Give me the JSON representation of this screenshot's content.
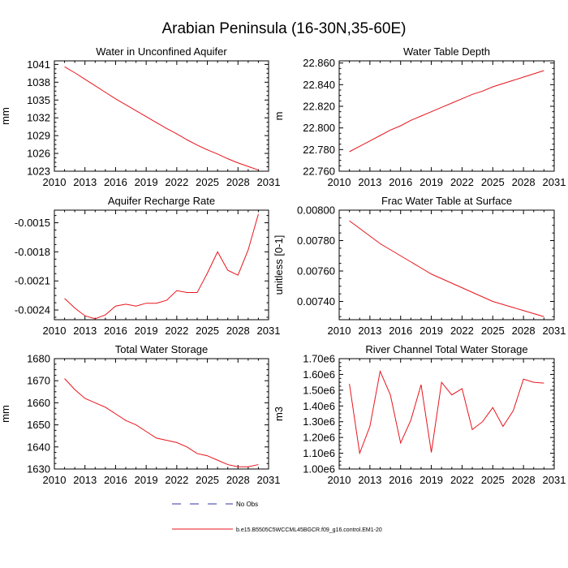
{
  "figure": {
    "title": "Arabian Peninsula (16-30N,35-60E)"
  },
  "colors": {
    "model": "#e8141c",
    "obs": "#3333aa",
    "axis": "#000000"
  },
  "legend": {
    "obs_label": "No Obs",
    "model_label": "b.e15.B5505C5WCCML45BGCR.f09_g16.control.EM1-20"
  },
  "chart_data": [
    {
      "type": "line",
      "title": "Water in Unconfined Aquifer",
      "ylabel": "mm",
      "xlim": [
        2010,
        2031
      ],
      "ylim": [
        1023,
        1041.6
      ],
      "xticks": [
        2010,
        2013,
        2016,
        2019,
        2022,
        2025,
        2028,
        2031
      ],
      "xtick_labels": [
        "2010",
        "2013",
        "2016",
        "2019",
        "2022",
        "2025",
        "2028",
        "2031"
      ],
      "yticks": [
        1023,
        1026,
        1029,
        1032,
        1035,
        1038,
        1041
      ],
      "ytick_labels": [
        "1023",
        "1026",
        "1029",
        "1032",
        "1035",
        "1038",
        "1041"
      ],
      "series": [
        {
          "x": [
            2011,
            2012,
            2013,
            2014,
            2015,
            2016,
            2017,
            2018,
            2019,
            2020,
            2021,
            2022,
            2023,
            2024,
            2025,
            2026,
            2027,
            2028,
            2029,
            2030
          ],
          "y": [
            1040.6,
            1039.6,
            1038.5,
            1037.4,
            1036.3,
            1035.2,
            1034.2,
            1033.2,
            1032.2,
            1031.2,
            1030.2,
            1029.3,
            1028.3,
            1027.4,
            1026.6,
            1025.9,
            1025.1,
            1024.4,
            1023.8,
            1023.2
          ]
        }
      ]
    },
    {
      "type": "line",
      "title": "Water Table Depth",
      "ylabel": "m",
      "xlim": [
        2010,
        2031
      ],
      "ylim": [
        22.76,
        22.862
      ],
      "xticks": [
        2010,
        2013,
        2016,
        2019,
        2022,
        2025,
        2028,
        2031
      ],
      "xtick_labels": [
        "2010",
        "2013",
        "2016",
        "2019",
        "2022",
        "2025",
        "2028",
        "2031"
      ],
      "yticks": [
        22.76,
        22.78,
        22.8,
        22.82,
        22.84,
        22.86
      ],
      "ytick_labels": [
        "22.760",
        "22.780",
        "22.800",
        "22.820",
        "22.840",
        "22.860"
      ],
      "series": [
        {
          "x": [
            2011,
            2012,
            2013,
            2014,
            2015,
            2016,
            2017,
            2018,
            2019,
            2020,
            2021,
            2022,
            2023,
            2024,
            2025,
            2026,
            2027,
            2028,
            2029,
            2030
          ],
          "y": [
            22.778,
            22.783,
            22.788,
            22.793,
            22.798,
            22.802,
            22.807,
            22.811,
            22.815,
            22.819,
            22.823,
            22.827,
            22.831,
            22.834,
            22.838,
            22.841,
            22.844,
            22.847,
            22.85,
            22.853
          ]
        }
      ]
    },
    {
      "type": "line",
      "title": "Aquifer Recharge Rate",
      "ylabel": "",
      "xlim": [
        2010,
        2031
      ],
      "ylim": [
        -0.0025,
        -0.00137
      ],
      "xticks": [
        2010,
        2013,
        2016,
        2019,
        2022,
        2025,
        2028,
        2031
      ],
      "xtick_labels": [
        "2010",
        "2013",
        "2016",
        "2019",
        "2022",
        "2025",
        "2028",
        "2031"
      ],
      "yticks": [
        -0.0024,
        -0.0021,
        -0.0018,
        -0.0015
      ],
      "ytick_labels": [
        "-0.0024",
        "-0.0021",
        "-0.0018",
        "-0.0015"
      ],
      "series": [
        {
          "x": [
            2011,
            2012,
            2013,
            2014,
            2015,
            2016,
            2017,
            2018,
            2019,
            2020,
            2021,
            2022,
            2023,
            2024,
            2025,
            2026,
            2027,
            2028,
            2029,
            2030
          ],
          "y": [
            -0.00228,
            -0.00238,
            -0.00246,
            -0.00249,
            -0.00245,
            -0.00236,
            -0.00234,
            -0.00236,
            -0.00233,
            -0.00233,
            -0.0023,
            -0.0022,
            -0.00222,
            -0.00222,
            -0.00202,
            -0.0018,
            -0.00199,
            -0.00204,
            -0.00178,
            -0.00141
          ]
        }
      ]
    },
    {
      "type": "line",
      "title": "Frac Water Table at Surface",
      "ylabel": "unitless [0-1]",
      "xlim": [
        2010,
        2031
      ],
      "ylim": [
        0.00728,
        0.008
      ],
      "xticks": [
        2010,
        2013,
        2016,
        2019,
        2022,
        2025,
        2028,
        2031
      ],
      "xtick_labels": [
        "2010",
        "2013",
        "2016",
        "2019",
        "2022",
        "2025",
        "2028",
        "2031"
      ],
      "yticks": [
        0.0074,
        0.0076,
        0.0078,
        0.008
      ],
      "ytick_labels": [
        "0.00740",
        "0.00760",
        "0.00780",
        "0.00800"
      ],
      "series": [
        {
          "x": [
            2011,
            2012,
            2013,
            2014,
            2015,
            2016,
            2017,
            2018,
            2019,
            2020,
            2021,
            2022,
            2023,
            2024,
            2025,
            2026,
            2027,
            2028,
            2029,
            2030
          ],
          "y": [
            0.00793,
            0.00788,
            0.00783,
            0.00778,
            0.00774,
            0.0077,
            0.00766,
            0.00762,
            0.00758,
            0.00755,
            0.00752,
            0.00749,
            0.00746,
            0.00743,
            0.0074,
            0.00738,
            0.00736,
            0.00734,
            0.00732,
            0.0073
          ]
        }
      ]
    },
    {
      "type": "line",
      "title": "Total Water Storage",
      "ylabel": "mm",
      "xlim": [
        2010,
        2031
      ],
      "ylim": [
        1630,
        1680
      ],
      "xticks": [
        2010,
        2013,
        2016,
        2019,
        2022,
        2025,
        2028,
        2031
      ],
      "xtick_labels": [
        "2010",
        "2013",
        "2016",
        "2019",
        "2022",
        "2025",
        "2028",
        "2031"
      ],
      "yticks": [
        1630,
        1640,
        1650,
        1660,
        1670,
        1680
      ],
      "ytick_labels": [
        "1630",
        "1640",
        "1650",
        "1660",
        "1670",
        "1680"
      ],
      "series": [
        {
          "x": [
            2011,
            2012,
            2013,
            2014,
            2015,
            2016,
            2017,
            2018,
            2019,
            2020,
            2021,
            2022,
            2023,
            2024,
            2025,
            2026,
            2027,
            2028,
            2029,
            2030
          ],
          "y": [
            1671,
            1666,
            1662,
            1660,
            1658,
            1655,
            1652,
            1650,
            1647,
            1644,
            1643,
            1642,
            1640,
            1637,
            1636,
            1634,
            1632,
            1631,
            1631,
            1632
          ]
        }
      ]
    },
    {
      "type": "line",
      "title": "River Channel Total Water Storage",
      "ylabel": "m3",
      "xlim": [
        2010,
        2031
      ],
      "ylim": [
        1000000,
        1700000
      ],
      "xticks": [
        2010,
        2013,
        2016,
        2019,
        2022,
        2025,
        2028,
        2031
      ],
      "xtick_labels": [
        "2010",
        "2013",
        "2016",
        "2019",
        "2022",
        "2025",
        "2028",
        "2031"
      ],
      "yticks": [
        1000000,
        1100000,
        1200000,
        1300000,
        1400000,
        1500000,
        1600000,
        1700000
      ],
      "ytick_labels": [
        "1.00e6",
        "1.10e6",
        "1.20e6",
        "1.30e6",
        "1.40e6",
        "1.50e6",
        "1.60e6",
        "1.70e6"
      ],
      "series": [
        {
          "x": [
            2011,
            2012,
            2013,
            2014,
            2015,
            2016,
            2017,
            2018,
            2019,
            2020,
            2021,
            2022,
            2023,
            2024,
            2025,
            2026,
            2027,
            2028,
            2029,
            2030
          ],
          "y": [
            1540000,
            1100000,
            1270000,
            1620000,
            1470000,
            1165000,
            1310000,
            1535000,
            1105000,
            1550000,
            1470000,
            1510000,
            1250000,
            1300000,
            1390000,
            1270000,
            1370000,
            1570000,
            1550000,
            1545000
          ]
        }
      ]
    }
  ]
}
